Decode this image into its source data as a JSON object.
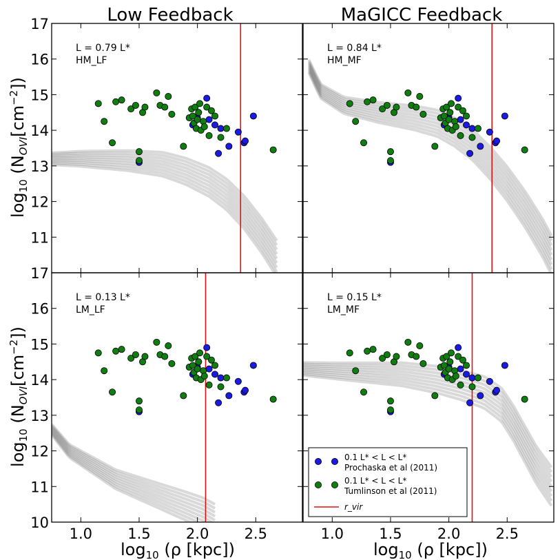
{
  "column_titles": [
    "Low Feedback",
    "MaGICC Feedback"
  ],
  "y_axis_label": {
    "prefix": "log",
    "sub10": "10",
    "body": " (N",
    "sub_ovi": "OVI",
    "units": "[cm",
    "sup": "−2",
    "close": "])"
  },
  "x_axis_label": {
    "prefix": "log",
    "sub10": "10",
    "body": " (ρ [kpc])"
  },
  "chart_data": {
    "type": "scatter",
    "xlim": [
      0.75,
      2.9
    ],
    "ylim": [
      10,
      17
    ],
    "x_ticks": [
      "1.0",
      "1.5",
      "2.0",
      "2.5"
    ],
    "x_tick_values": [
      1.0,
      1.5,
      2.0,
      2.5
    ],
    "y_ticks": [
      "10",
      "11",
      "12",
      "13",
      "14",
      "15",
      "16",
      "17"
    ],
    "y_tick_values": [
      10,
      11,
      12,
      13,
      14,
      15,
      16,
      17
    ],
    "y_overlap_label": "17",
    "colors": {
      "prochaska": "#1a1ae0",
      "tumlinson": "#0f7d0f",
      "rvir": "#e01010",
      "sim": "#505050"
    },
    "prochaska": {
      "legend": [
        "0.1 L* < L < L*",
        "Prochaska et al (2011)"
      ],
      "x": [
        1.5,
        1.96,
        2.0,
        2.08,
        2.1,
        2.15,
        2.18,
        2.2,
        2.27,
        2.35,
        2.4,
        2.41,
        2.48
      ],
      "y": [
        13.1,
        14.15,
        14.35,
        14.9,
        14.3,
        14.15,
        13.35,
        14.05,
        13.55,
        13.95,
        13.65,
        13.7,
        14.4
      ]
    },
    "tumlinson": {
      "legend": [
        "0.1 L* < L < L*",
        "Tumlinson et al (2011)"
      ],
      "x": [
        1.15,
        1.2,
        1.27,
        1.3,
        1.35,
        1.43,
        1.47,
        1.5,
        1.5,
        1.53,
        1.55,
        1.65,
        1.68,
        1.72,
        1.75,
        1.78,
        1.88,
        1.93,
        1.95,
        1.96,
        1.97,
        1.98,
        1.99,
        2.0,
        2.01,
        2.02,
        2.03,
        2.05,
        2.06,
        2.08,
        2.1,
        2.12,
        2.15,
        2.2,
        2.25,
        2.65
      ],
      "y": [
        14.75,
        14.25,
        13.65,
        14.8,
        14.85,
        14.6,
        14.7,
        13.4,
        13.15,
        14.5,
        14.65,
        15.05,
        14.7,
        14.65,
        14.95,
        14.45,
        13.55,
        14.35,
        14.6,
        14.4,
        14.2,
        14.65,
        14.05,
        14.3,
        14.5,
        14.75,
        14.0,
        14.25,
        14.1,
        14.65,
        13.85,
        14.55,
        14.4,
        13.8,
        14.05,
        13.45
      ]
    },
    "rvir_label": "r_vir",
    "panels": [
      {
        "id": "HM_LF",
        "luminosity": "L = 0.79 L*",
        "name": "HM_LF",
        "rvir": 2.37,
        "show_legend": false,
        "curve_x": [
          0.75,
          1.0,
          1.4,
          1.7,
          1.9,
          2.1,
          2.25,
          2.4,
          2.55,
          2.68
        ],
        "curve_y": [
          13.2,
          13.2,
          13.15,
          13.05,
          12.85,
          12.55,
          12.2,
          11.7,
          11.05,
          10.4
        ],
        "spread": 0.28
      },
      {
        "id": "HM_MF",
        "luminosity": "L = 0.84 L*",
        "name": "HM_MF",
        "rvir": 2.37,
        "show_legend": false,
        "curve_x": [
          0.8,
          0.9,
          1.1,
          1.4,
          1.7,
          1.9,
          2.05,
          2.2,
          2.35,
          2.5,
          2.65,
          2.8,
          2.88
        ],
        "curve_y": [
          15.8,
          15.1,
          14.7,
          14.5,
          14.35,
          14.2,
          13.95,
          13.6,
          13.1,
          12.5,
          11.8,
          11.0,
          10.5
        ],
        "spread": 0.3
      },
      {
        "id": "LM_LF",
        "luminosity": "L = 0.13 L*",
        "name": "LM_LF",
        "rvir": 2.07,
        "show_legend": false,
        "curve_x": [
          0.75,
          0.9,
          1.1,
          1.3,
          1.5,
          1.7,
          1.9,
          2.05,
          2.15
        ],
        "curve_y": [
          12.6,
          12.0,
          11.6,
          11.2,
          10.95,
          10.7,
          10.45,
          10.25,
          10.05
        ],
        "spread": 0.25
      },
      {
        "id": "LM_MF",
        "luminosity": "L = 0.15 L*",
        "name": "LM_MF",
        "rvir": 2.2,
        "show_legend": true,
        "curve_x": [
          0.75,
          1.0,
          1.3,
          1.6,
          1.9,
          2.1,
          2.3,
          2.45,
          2.55,
          2.65,
          2.75,
          2.88
        ],
        "curve_y": [
          14.3,
          14.25,
          14.2,
          14.15,
          14.0,
          13.85,
          13.65,
          13.3,
          12.8,
          12.2,
          11.6,
          11.0
        ],
        "spread": 0.3
      }
    ]
  }
}
